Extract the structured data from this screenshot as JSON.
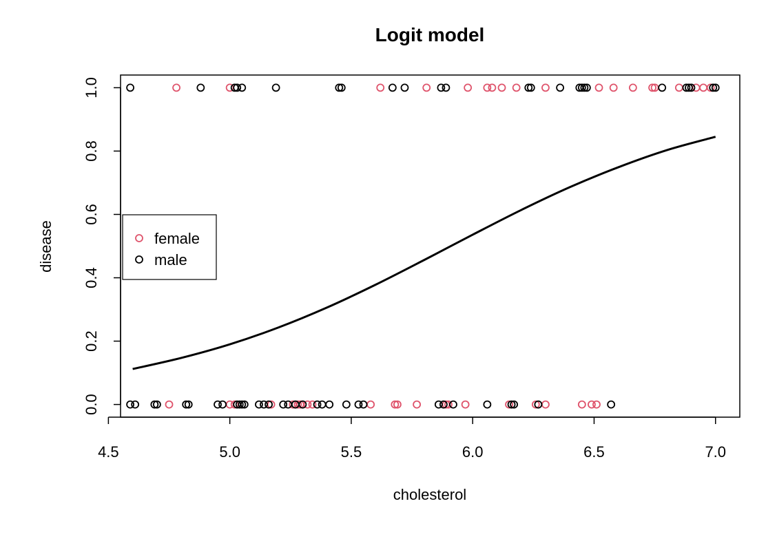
{
  "chart_data": {
    "type": "scatter",
    "title": "Logit model",
    "xlabel": "cholesterol",
    "ylabel": "disease",
    "xlim": [
      4.55,
      7.1
    ],
    "ylim": [
      -0.04,
      1.04
    ],
    "xticks": [
      "4.5",
      "5.0",
      "5.5",
      "6.0",
      "6.5",
      "7.0"
    ],
    "yticks": [
      "0.0",
      "0.2",
      "0.4",
      "0.6",
      "0.8",
      "1.0"
    ],
    "grid": false,
    "legend": {
      "position": "left",
      "entries": [
        {
          "name": "female",
          "color": "#DF536B"
        },
        {
          "name": "male",
          "color": "#000000"
        }
      ]
    },
    "series": [
      {
        "name": "female",
        "color": "#DF536B",
        "marker": "open-circle",
        "points": [
          [
            4.78,
            1
          ],
          [
            5.0,
            1
          ],
          [
            5.62,
            1
          ],
          [
            5.81,
            1
          ],
          [
            5.98,
            1
          ],
          [
            6.06,
            1
          ],
          [
            6.08,
            1
          ],
          [
            6.12,
            1
          ],
          [
            6.18,
            1
          ],
          [
            6.3,
            1
          ],
          [
            6.52,
            1
          ],
          [
            6.58,
            1
          ],
          [
            6.66,
            1
          ],
          [
            6.74,
            1
          ],
          [
            6.75,
            1
          ],
          [
            6.85,
            1
          ],
          [
            6.92,
            1
          ],
          [
            6.95,
            1
          ],
          [
            6.98,
            1
          ],
          [
            4.75,
            0
          ],
          [
            5.0,
            0
          ],
          [
            5.02,
            0
          ],
          [
            5.17,
            0
          ],
          [
            5.26,
            0
          ],
          [
            5.28,
            0
          ],
          [
            5.29,
            0
          ],
          [
            5.32,
            0
          ],
          [
            5.34,
            0
          ],
          [
            5.58,
            0
          ],
          [
            5.68,
            0
          ],
          [
            5.69,
            0
          ],
          [
            5.77,
            0
          ],
          [
            5.89,
            0
          ],
          [
            5.9,
            0
          ],
          [
            5.97,
            0
          ],
          [
            6.15,
            0
          ],
          [
            6.26,
            0
          ],
          [
            6.3,
            0
          ],
          [
            6.45,
            0
          ],
          [
            6.49,
            0
          ],
          [
            6.51,
            0
          ]
        ]
      },
      {
        "name": "male",
        "color": "#000000",
        "marker": "open-circle",
        "points": [
          [
            4.59,
            1
          ],
          [
            4.88,
            1
          ],
          [
            5.02,
            1
          ],
          [
            5.03,
            1
          ],
          [
            5.05,
            1
          ],
          [
            5.19,
            1
          ],
          [
            5.45,
            1
          ],
          [
            5.46,
            1
          ],
          [
            5.67,
            1
          ],
          [
            5.72,
            1
          ],
          [
            5.87,
            1
          ],
          [
            5.89,
            1
          ],
          [
            6.23,
            1
          ],
          [
            6.24,
            1
          ],
          [
            6.36,
            1
          ],
          [
            6.44,
            1
          ],
          [
            6.45,
            1
          ],
          [
            6.46,
            1
          ],
          [
            6.47,
            1
          ],
          [
            6.78,
            1
          ],
          [
            6.88,
            1
          ],
          [
            6.89,
            1
          ],
          [
            6.9,
            1
          ],
          [
            6.99,
            1
          ],
          [
            7.0,
            1
          ],
          [
            4.59,
            0
          ],
          [
            4.61,
            0
          ],
          [
            4.69,
            0
          ],
          [
            4.7,
            0
          ],
          [
            4.82,
            0
          ],
          [
            4.83,
            0
          ],
          [
            4.95,
            0
          ],
          [
            4.97,
            0
          ],
          [
            5.03,
            0
          ],
          [
            5.04,
            0
          ],
          [
            5.05,
            0
          ],
          [
            5.06,
            0
          ],
          [
            5.12,
            0
          ],
          [
            5.14,
            0
          ],
          [
            5.16,
            0
          ],
          [
            5.22,
            0
          ],
          [
            5.24,
            0
          ],
          [
            5.27,
            0
          ],
          [
            5.3,
            0
          ],
          [
            5.36,
            0
          ],
          [
            5.38,
            0
          ],
          [
            5.41,
            0
          ],
          [
            5.48,
            0
          ],
          [
            5.53,
            0
          ],
          [
            5.55,
            0
          ],
          [
            5.86,
            0
          ],
          [
            5.88,
            0
          ],
          [
            5.92,
            0
          ],
          [
            6.06,
            0
          ],
          [
            6.16,
            0
          ],
          [
            6.17,
            0
          ],
          [
            6.27,
            0
          ],
          [
            6.57,
            0
          ]
        ]
      }
    ],
    "curve": {
      "name": "fitted logit",
      "color": "#000000",
      "points": [
        [
          4.6,
          0.112
        ],
        [
          4.8,
          0.147
        ],
        [
          5.0,
          0.19
        ],
        [
          5.2,
          0.243
        ],
        [
          5.4,
          0.306
        ],
        [
          5.6,
          0.378
        ],
        [
          5.8,
          0.456
        ],
        [
          6.0,
          0.536
        ],
        [
          6.2,
          0.614
        ],
        [
          6.4,
          0.686
        ],
        [
          6.6,
          0.749
        ],
        [
          6.8,
          0.803
        ],
        [
          7.0,
          0.845
        ]
      ]
    }
  }
}
